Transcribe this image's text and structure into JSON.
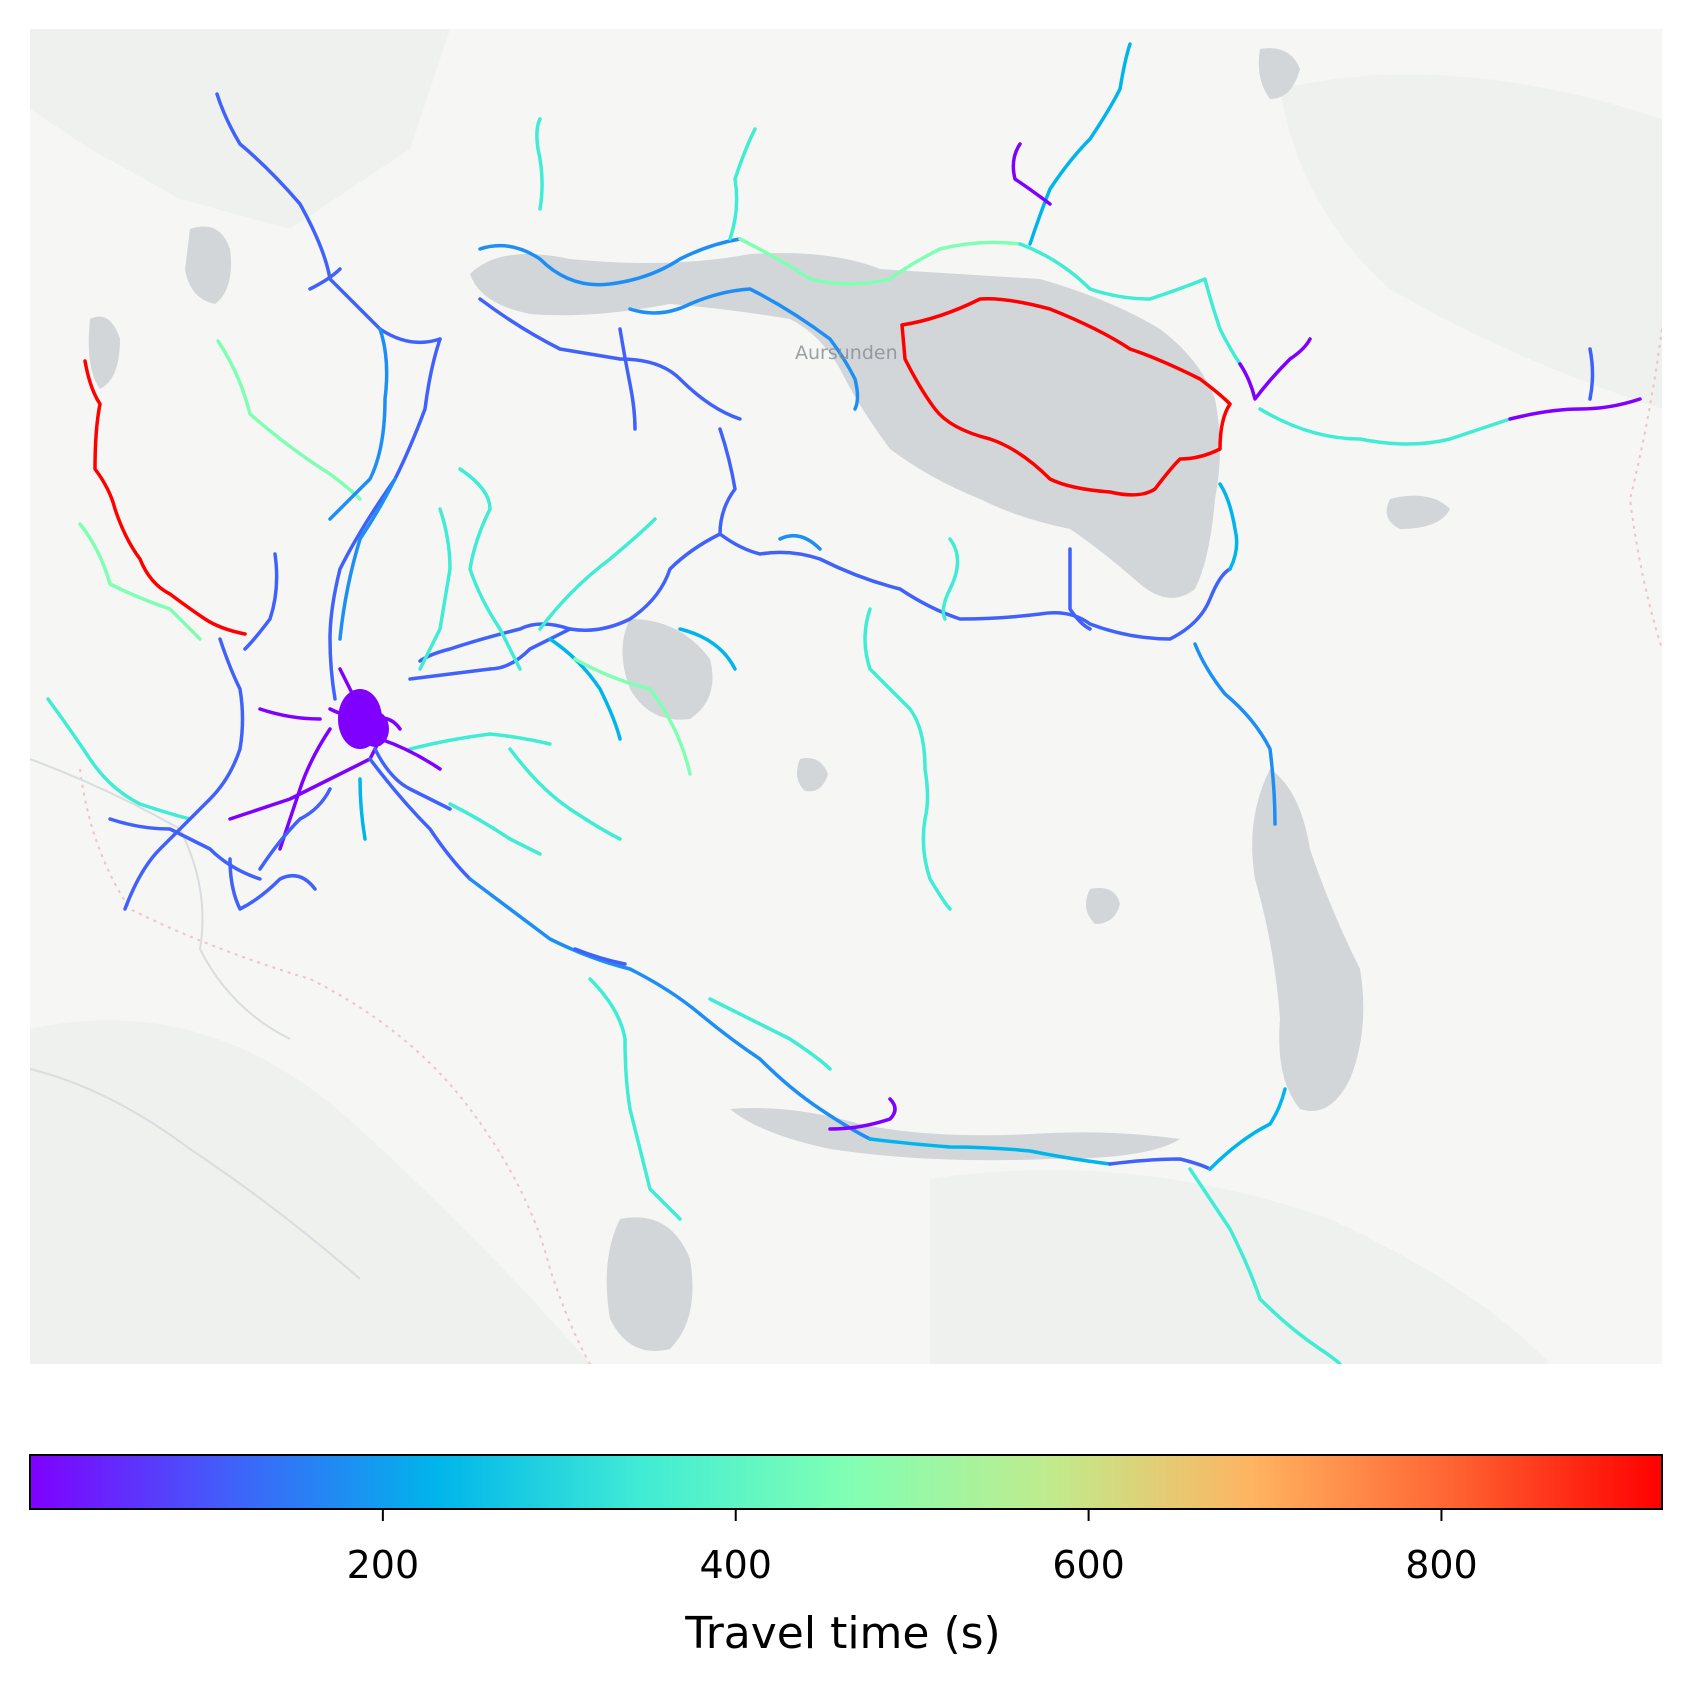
{
  "map": {
    "place_label": "Aursunden",
    "background_color": "#f6f7f5",
    "water_color": "#d2d6d9"
  },
  "colorbar": {
    "label": "Travel time (s)",
    "colormap": "rainbow",
    "range": [
      0,
      925
    ],
    "ticks": [
      {
        "value": 200,
        "label": "200"
      },
      {
        "value": 400,
        "label": "400"
      },
      {
        "value": 600,
        "label": "600"
      },
      {
        "value": 800,
        "label": "800"
      }
    ],
    "colors": [
      "#8000ff",
      "#4062fa",
      "#00b5eb",
      "#40ecd4",
      "#80ffb4",
      "#c0eb8d",
      "#ffb360",
      "#ff6130",
      "#ff0000"
    ]
  }
}
